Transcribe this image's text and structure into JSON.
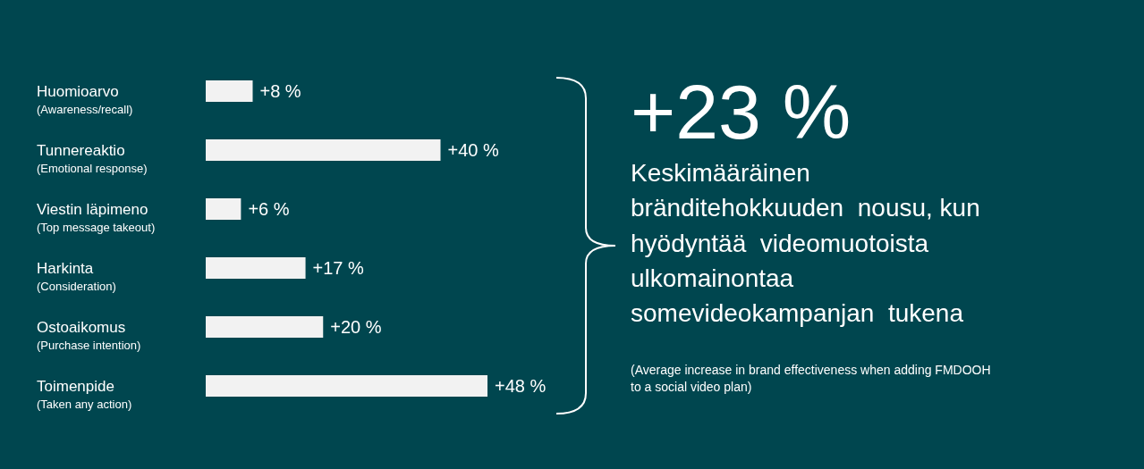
{
  "chart_data": {
    "type": "bar",
    "orientation": "horizontal",
    "categories": [
      "Huomioarvo\n(Awareness/recall)",
      "Tunnereaktio\n(Emotional response)",
      "Viestin läpimeno\n(Top message takeout)",
      "Harkinta\n(Consideration)",
      "Ostoaikomus\n(Purchase intention)",
      "Toimenpide\n(Taken any action)"
    ],
    "values": [
      8,
      40,
      6,
      17,
      20,
      48
    ],
    "value_labels": [
      "+8 %",
      "+40 %",
      "+6 %",
      "+17 %",
      "+20 %",
      "+48 %"
    ],
    "color": "#f2f2f2",
    "annotations": [
      "+23 %",
      "Keskimääräinen\nbränditehokkuuden  nousu, kun\nhyödyntää  videomuotoista\nulkomainontaa\nsomevideokampanjan  tukena",
      "(Average increase in brand effectiveness when adding FMDOOH\nto a social video plan)"
    ]
  }
}
